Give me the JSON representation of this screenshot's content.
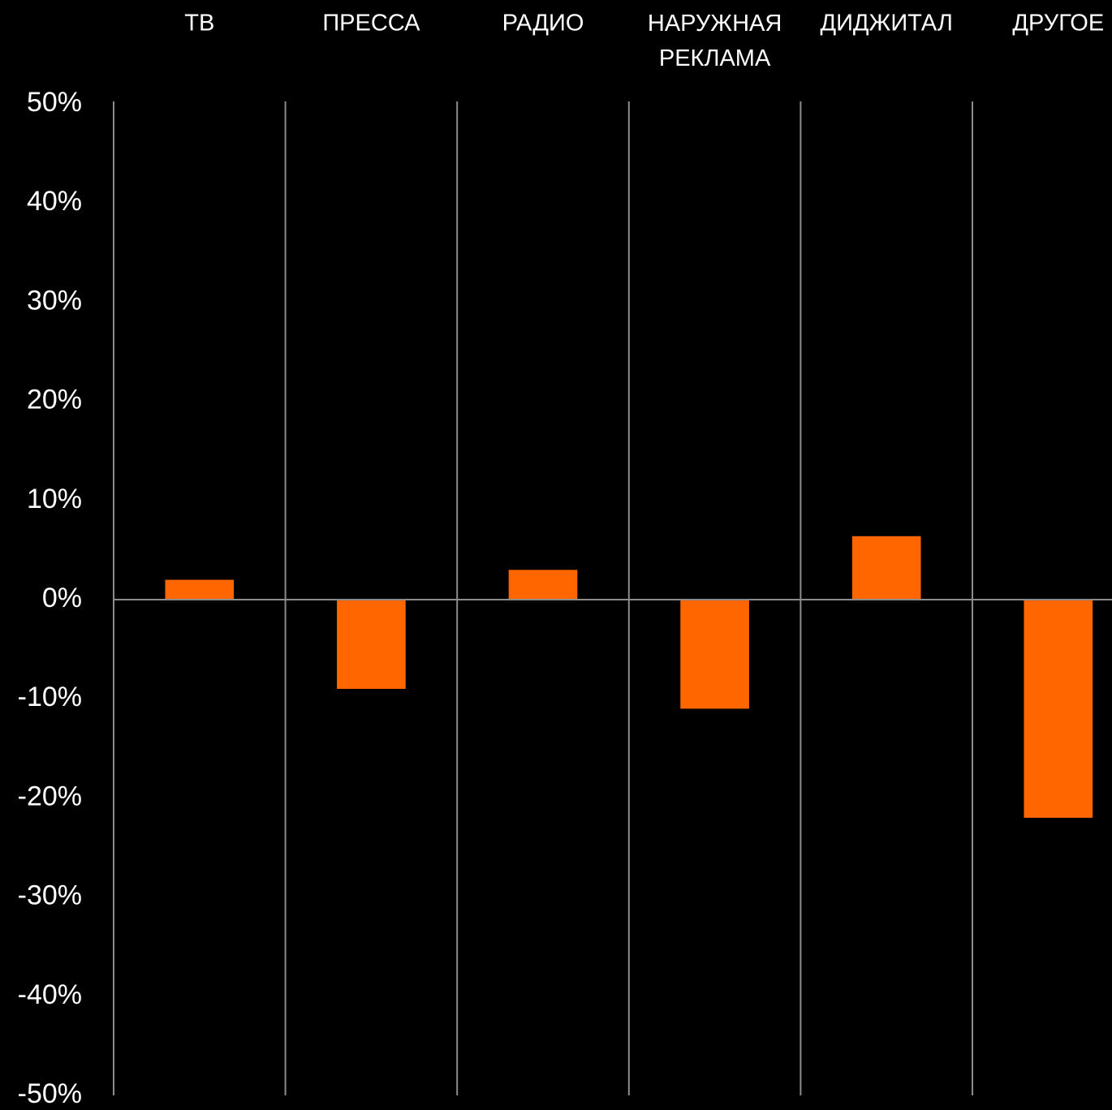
{
  "chart_data": {
    "type": "bar",
    "categories": [
      "ТВ",
      "ПРЕССА",
      "РАДИО",
      "НАРУЖНАЯ РЕКЛАМА",
      "ДИДЖИТАЛ",
      "ДРУГОЕ"
    ],
    "values": [
      2,
      -9,
      3,
      -11,
      6.4,
      -22
    ],
    "color": "#ff6600",
    "ylim": [
      -50,
      50
    ],
    "yticks": [
      {
        "value": -50,
        "label": "-50%"
      },
      {
        "value": -40,
        "label": "-40%"
      },
      {
        "value": -30,
        "label": "-30%"
      },
      {
        "value": -20,
        "label": "-20%"
      },
      {
        "value": -10,
        "label": "-10%"
      },
      {
        "value": 0,
        "label": "0%"
      },
      {
        "value": 10,
        "label": "10%"
      },
      {
        "value": 20,
        "label": "20%"
      },
      {
        "value": 30,
        "label": "30%"
      },
      {
        "value": 40,
        "label": "40%"
      },
      {
        "value": 50,
        "label": "50%"
      }
    ],
    "grid": false
  }
}
